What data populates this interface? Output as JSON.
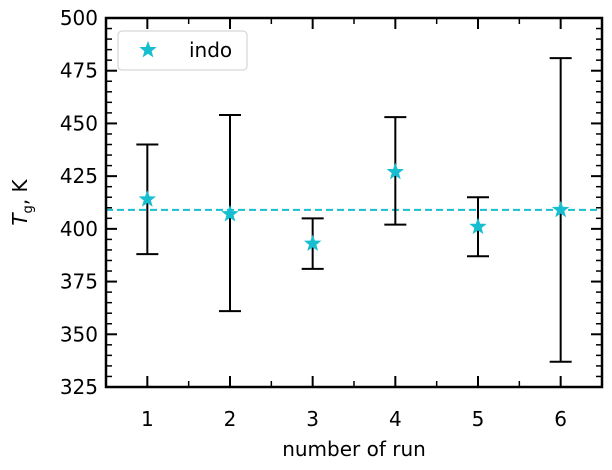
{
  "chart_data": {
    "type": "scatter",
    "title": "",
    "xlabel": "number of run",
    "ylabel": {
      "symbol": "T",
      "subscript": "g",
      "suffix": ", K"
    },
    "xlim": [
      0.5,
      6.5
    ],
    "ylim": [
      325,
      500
    ],
    "xticks": [
      "1",
      "2",
      "3",
      "4",
      "5",
      "6"
    ],
    "yticks": [
      "325",
      "350",
      "375",
      "400",
      "425",
      "450",
      "475",
      "500"
    ],
    "grid": false,
    "legend_position": "top-left",
    "series": [
      {
        "name": "indo",
        "color": "#17becf",
        "marker": "star",
        "x": [
          1,
          2,
          3,
          4,
          5,
          6
        ],
        "y": [
          414,
          407,
          393,
          427,
          401,
          409
        ],
        "err_low": [
          388,
          361,
          381,
          402,
          387,
          337
        ],
        "err_high": [
          440,
          454,
          405,
          453,
          415,
          481
        ]
      }
    ],
    "hline": {
      "y": 409,
      "color": "#17becf",
      "style": "dashed"
    },
    "errorbar_color": "#000000"
  }
}
